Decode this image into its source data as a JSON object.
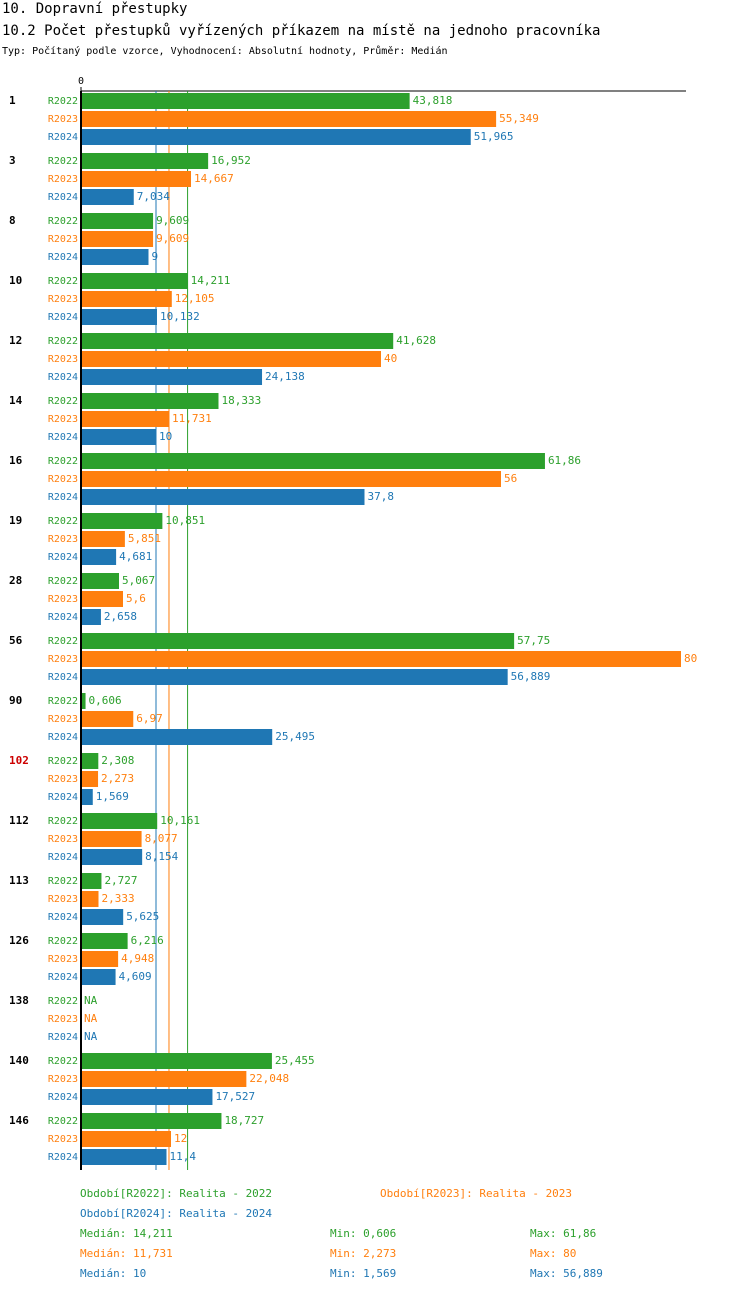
{
  "chart_data": {
    "type": "bar",
    "orientation": "horizontal",
    "title": "10. Dopravní přestupky",
    "subtitle": "10.2 Počet přestupků vyřízených příkazem na místě na jednoho pracovníka",
    "note": "Typ: Počítaný podle vzorce, Vyhodnocení: Absolutní hodnoty, Průměr: Medián",
    "categories": [
      "1",
      "3",
      "8",
      "10",
      "12",
      "14",
      "16",
      "19",
      "28",
      "56",
      "90",
      "102",
      "112",
      "113",
      "126",
      "138",
      "140",
      "146"
    ],
    "highlight": {
      "categories": [
        "102"
      ],
      "color": "#cc0000"
    },
    "xlim": [
      0,
      80
    ],
    "xticks": [
      0
    ],
    "series": [
      {
        "name": "R2022",
        "color": "#2ca02c",
        "legend": "Období[R2022]: Realita - 2022",
        "values": [
          43.818,
          16.952,
          9.609,
          14.211,
          41.628,
          18.333,
          61.86,
          10.851,
          5.067,
          57.75,
          0.606,
          2.308,
          10.161,
          2.727,
          6.216,
          null,
          25.455,
          18.727
        ],
        "value_labels": [
          "43,818",
          "16,952",
          "9,609",
          "14,211",
          "41,628",
          "18,333",
          "61,86",
          "10,851",
          "5,067",
          "57,75",
          "0,606",
          "2,308",
          "10,161",
          "2,727",
          "6,216",
          "NA",
          "25,455",
          "18,727"
        ],
        "median": {
          "value": 14.211,
          "label": "Medián: 14,211"
        },
        "min": {
          "value": 0.606,
          "label": "Min: 0,606"
        },
        "max": {
          "value": 61.86,
          "label": "Max: 61,86"
        }
      },
      {
        "name": "R2023",
        "color": "#ff7f0e",
        "legend": "Období[R2023]: Realita - 2023",
        "values": [
          55.349,
          14.667,
          9.609,
          12.105,
          40,
          11.731,
          56,
          5.851,
          5.6,
          80,
          6.97,
          2.273,
          8.077,
          2.333,
          4.948,
          null,
          22.048,
          12
        ],
        "value_labels": [
          "55,349",
          "14,667",
          "9,609",
          "12,105",
          "40",
          "11,731",
          "56",
          "5,851",
          "5,6",
          "80",
          "6,97",
          "2,273",
          "8,077",
          "2,333",
          "4,948",
          "NA",
          "22,048",
          "12"
        ],
        "median": {
          "value": 11.731,
          "label": "Medián: 11,731"
        },
        "min": {
          "value": 2.273,
          "label": "Min: 2,273"
        },
        "max": {
          "value": 80,
          "label": "Max: 80"
        }
      },
      {
        "name": "R2024",
        "color": "#1f77b4",
        "legend": "Období[R2024]: Realita - 2024",
        "values": [
          51.965,
          7.034,
          9,
          10.132,
          24.138,
          10,
          37.8,
          4.681,
          2.658,
          56.889,
          25.495,
          1.569,
          8.154,
          5.625,
          4.609,
          null,
          17.527,
          11.4
        ],
        "value_labels": [
          "51,965",
          "7,034",
          "9",
          "10,132",
          "24,138",
          "10",
          "37,8",
          "4,681",
          "2,658",
          "56,889",
          "25,495",
          "1,569",
          "8,154",
          "5,625",
          "4,609",
          "NA",
          "17,527",
          "11,4"
        ],
        "median": {
          "value": 10,
          "label": "Medián: 10"
        },
        "min": {
          "value": 1.569,
          "label": "Min: 1,569"
        },
        "max": {
          "value": 56.889,
          "label": "Max: 56,889"
        }
      }
    ]
  }
}
